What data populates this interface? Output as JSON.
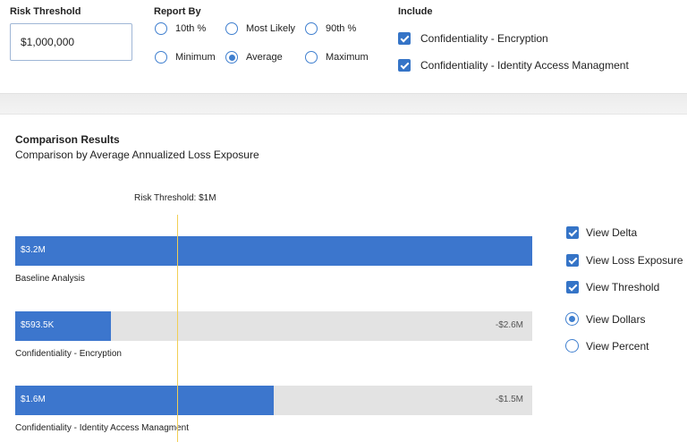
{
  "filters": {
    "risk_threshold": {
      "label": "Risk Threshold",
      "value": "$1,000,000"
    },
    "report_by": {
      "label": "Report By",
      "options": [
        {
          "label": "10th %",
          "selected": false
        },
        {
          "label": "Most Likely",
          "selected": false
        },
        {
          "label": "90th %",
          "selected": false
        },
        {
          "label": "Minimum",
          "selected": false
        },
        {
          "label": "Average",
          "selected": true
        },
        {
          "label": "Maximum",
          "selected": false
        }
      ]
    },
    "include": {
      "label": "Include",
      "items": [
        {
          "label": "Confidentiality - Encryption",
          "checked": true
        },
        {
          "label": "Confidentiality - Identity Access Managment",
          "checked": true
        }
      ]
    }
  },
  "results": {
    "title": "Comparison Results",
    "subtitle": "Comparison by Average Annualized Loss Exposure"
  },
  "chart_data": {
    "type": "bar",
    "orientation": "horizontal",
    "threshold": {
      "value": 1000000,
      "label": "Risk Threshold: $1M"
    },
    "max": 3200000,
    "categories": [
      "Baseline Analysis",
      "Confidentiality - Encryption",
      "Confidentiality - Identity Access Managment"
    ],
    "values": [
      3200000,
      593500,
      1600000
    ],
    "value_labels": [
      "$3.2M",
      "$593.5K",
      "$1.6M"
    ],
    "delta_labels": [
      "",
      "-$2.6M",
      "-$1.5M"
    ]
  },
  "view_options": {
    "checks": [
      {
        "label": "View Delta",
        "checked": true
      },
      {
        "label": "View Loss Exposure",
        "checked": true
      },
      {
        "label": "View Threshold",
        "checked": true
      }
    ],
    "radios": [
      {
        "label": "View Dollars",
        "selected": true
      },
      {
        "label": "View Percent",
        "selected": false
      }
    ]
  },
  "colors": {
    "accent": "#3c76cd",
    "track": "#e3e3e3",
    "threshold": "#f2cf55"
  }
}
